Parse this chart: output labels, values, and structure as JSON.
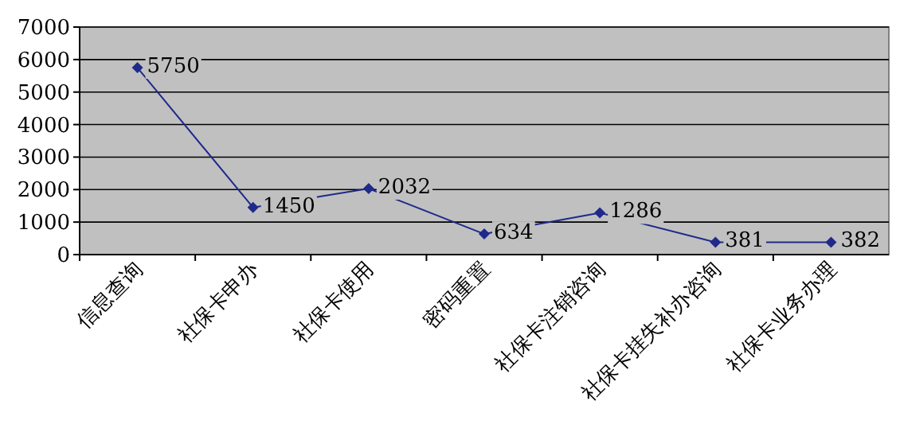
{
  "chart_data": {
    "type": "line",
    "categories": [
      "信息查询",
      "社保卡申办",
      "社保卡使用",
      "密码重置",
      "社保卡注销咨询",
      "社保卡挂失补办咨询",
      "社保卡业务办理"
    ],
    "series": [
      {
        "color": "#1f2a8a",
        "values": [
          5750,
          1450,
          2032,
          634,
          1286,
          381,
          382
        ]
      }
    ],
    "ylim": [
      0,
      7000
    ],
    "yticks": [
      0,
      1000,
      2000,
      3000,
      4000,
      5000,
      6000,
      7000
    ],
    "grid": "y",
    "marker": "diamond",
    "line_style": "solid",
    "data_labels": true
  }
}
